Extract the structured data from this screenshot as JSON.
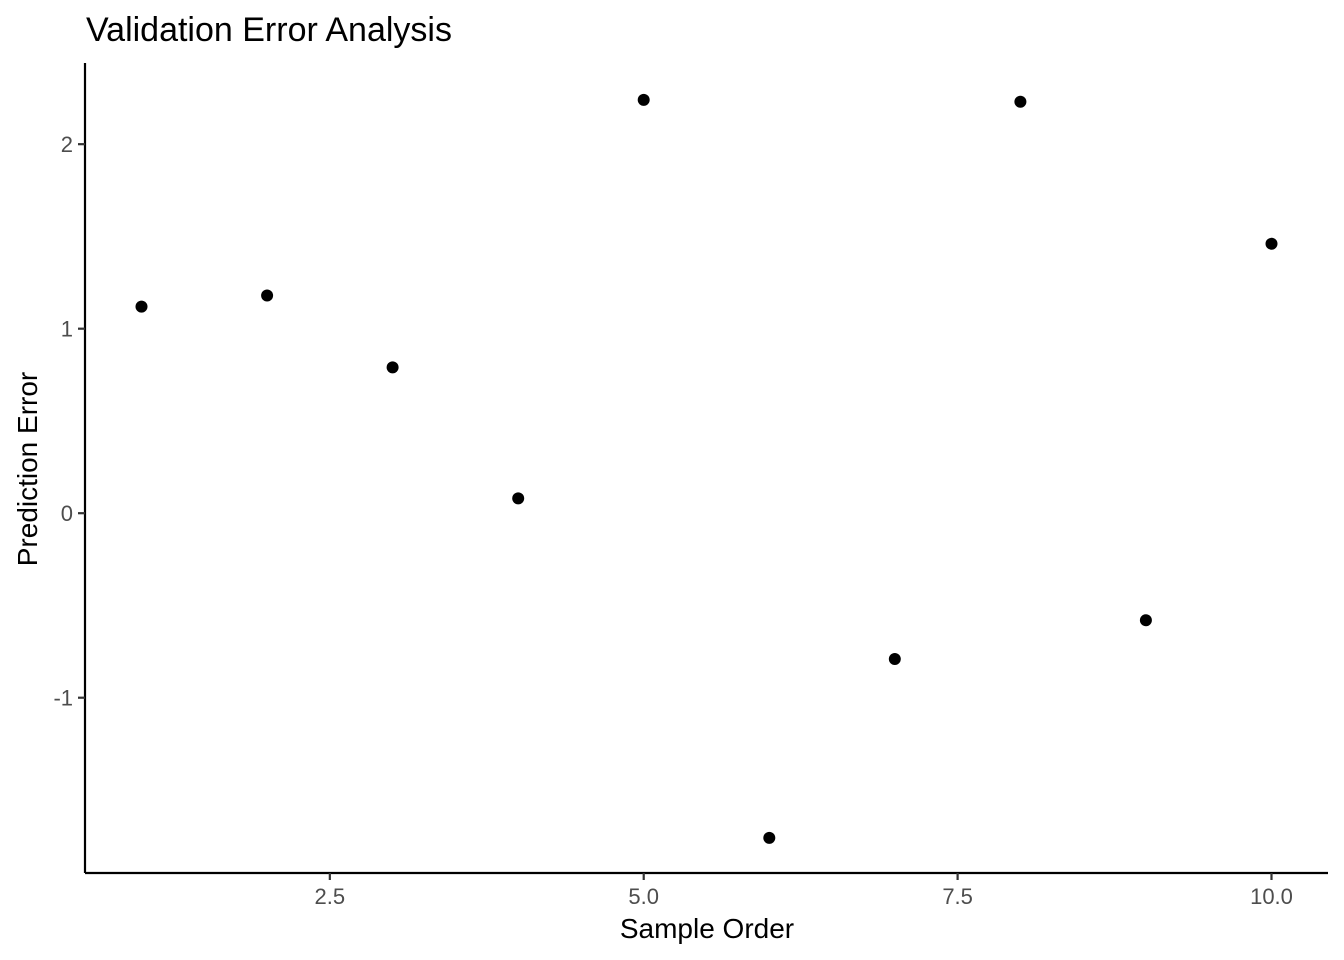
{
  "chart_data": {
    "type": "scatter",
    "title": "Validation Error Analysis",
    "xlabel": "Sample Order",
    "ylabel": "Prediction Error",
    "x_ticks": [
      2.5,
      5.0,
      7.5,
      10.0
    ],
    "x_tick_labels": [
      "2.5",
      "5.0",
      "7.5",
      "10.0"
    ],
    "y_ticks": [
      -1,
      0,
      1,
      2
    ],
    "y_tick_labels": [
      "-1",
      "0",
      "1",
      "2"
    ],
    "xlim": [
      0.55,
      10.45
    ],
    "ylim": [
      -1.95,
      2.44
    ],
    "grid": false,
    "point_color": "#000000",
    "series": [
      {
        "x": [
          1,
          2,
          3,
          4,
          5,
          6,
          7,
          8,
          9,
          10
        ],
        "y": [
          1.12,
          1.18,
          0.79,
          0.08,
          2.24,
          -1.76,
          -0.79,
          2.23,
          -0.58,
          1.46
        ]
      }
    ]
  }
}
